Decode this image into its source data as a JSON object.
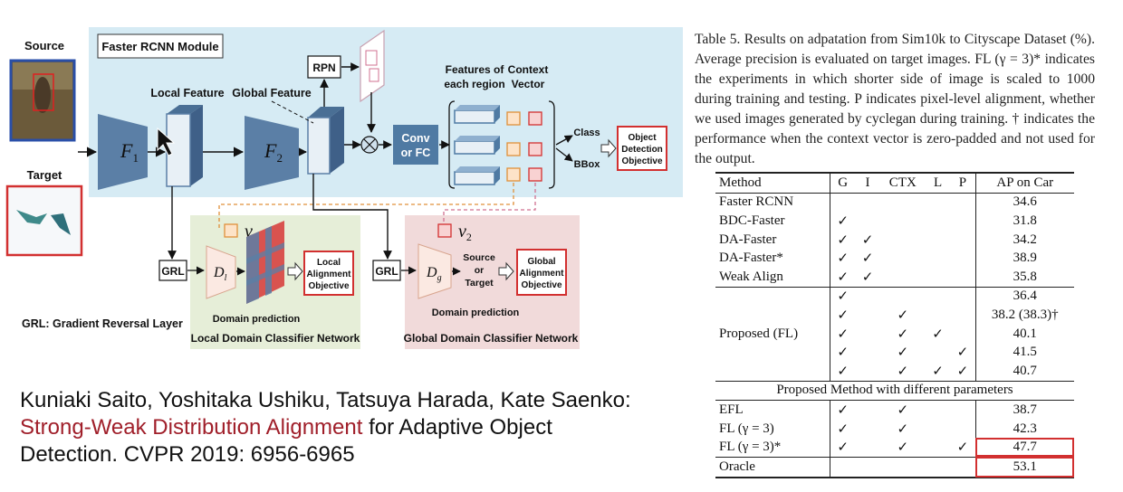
{
  "diagram": {
    "module_title": "Faster RCNN Module",
    "source_label": "Source",
    "target_label": "Target",
    "f1": "F",
    "f1_sub": "1",
    "f2": "F",
    "f2_sub": "2",
    "local_feature": "Local Feature",
    "global_feature": "Global Feature",
    "rpn": "RPN",
    "features_each_region_1": "Features of",
    "features_each_region_2": "each region",
    "context_vector_1": "Context",
    "context_vector_2": "Vector",
    "conv_1": "Conv",
    "conv_2": "or FC",
    "class_label": "Class",
    "bbox_label": "BBox",
    "objective_1": "Object",
    "objective_2": "Detection",
    "objective_3": "Objective",
    "grl": "GRL",
    "dl": "D",
    "dl_sub": "l",
    "dg": "D",
    "dg_sub": "g",
    "v1": "v",
    "v1_sub": "1",
    "v2": "v",
    "v2_sub": "2",
    "local_align_1": "Local",
    "local_align_2": "Alignment",
    "local_align_3": "Objective",
    "global_align_1": "Global",
    "global_align_2": "Alignment",
    "global_align_3": "Objective",
    "source_or_target_1": "Source",
    "source_or_target_2": "or",
    "source_or_target_3": "Target",
    "domain_prediction": "Domain prediction",
    "local_classifier": "Local Domain Classifier Network",
    "global_classifier": "Global Domain Classifier Network",
    "grl_legend": "GRL: Gradient Reversal Layer",
    "colors": {
      "module_bg": "#d6ebf4",
      "local_bg": "#e6eed8",
      "global_bg": "#f1dada",
      "red": "#d23030",
      "blue_block": "#5b7fa6"
    }
  },
  "citation": {
    "authors": "Kuniaki Saito, Yoshitaka Ushiku, Tatsuya Harada, Kate Saenko:",
    "title_red": "Strong-Weak Distribution Alignment",
    "title_rest": " for Adaptive Object",
    "venue": "Detection. CVPR 2019: 6956-6965"
  },
  "caption": "Table 5. Results on adpatation from Sim10k to Cityscape Dataset (%). Average precision is evaluated on target images. FL (γ = 3)* indicates the experiments in which shorter side of image is scaled to 1000 during training and testing. P indicates pixel-level alignment, whether we used images generated by cyclegan during training. † indicates the performance when the context vector is zero-padded and not used for the output.",
  "table": {
    "headers": [
      "Method",
      "G",
      "I",
      "CTX",
      "L",
      "P",
      "AP on Car"
    ],
    "group1": [
      [
        "Faster RCNN",
        "",
        "",
        "",
        "",
        "",
        "34.6"
      ],
      [
        "BDC-Faster",
        "✓",
        "",
        "",
        "",
        "",
        "31.8"
      ],
      [
        "DA-Faster",
        "✓",
        "✓",
        "",
        "",
        "",
        "34.2"
      ],
      [
        "DA-Faster*",
        "✓",
        "✓",
        "",
        "",
        "",
        "38.9"
      ],
      [
        "Weak Align",
        "✓",
        "✓",
        "",
        "",
        "",
        "35.8"
      ]
    ],
    "proposed_label": "Proposed (FL)",
    "group2": [
      [
        "✓",
        "",
        "",
        "",
        "",
        "36.4"
      ],
      [
        "✓",
        "",
        "✓",
        "",
        "",
        "38.2 (38.3)†"
      ],
      [
        "✓",
        "",
        "✓",
        "✓",
        "",
        "40.1"
      ],
      [
        "✓",
        "",
        "✓",
        "",
        "✓",
        "41.5"
      ],
      [
        "✓",
        "",
        "✓",
        "✓",
        "✓",
        "40.7"
      ]
    ],
    "param_header": "Proposed Method with different parameters",
    "group3": [
      [
        "EFL",
        "✓",
        "",
        "✓",
        "",
        "",
        "38.7"
      ],
      [
        "FL (γ = 3)",
        "✓",
        "",
        "✓",
        "",
        "",
        "42.3"
      ],
      [
        "FL (γ = 3)*",
        "✓",
        "",
        "✓",
        "",
        "✓",
        "47.7"
      ]
    ],
    "oracle": [
      "Oracle",
      "53.1"
    ]
  }
}
